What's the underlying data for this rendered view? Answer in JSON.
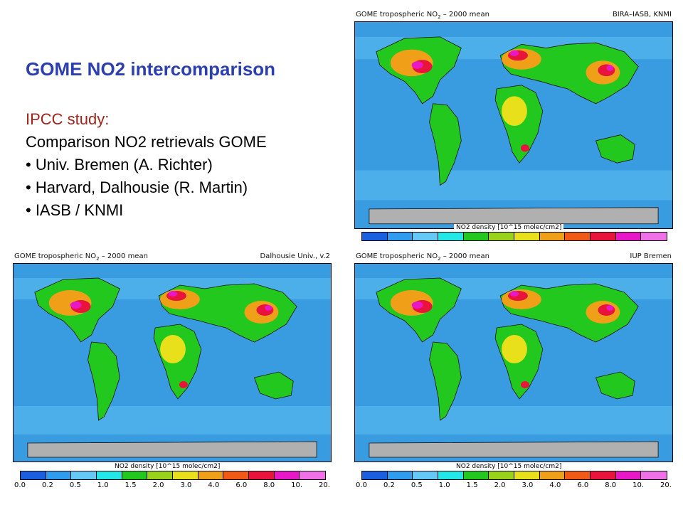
{
  "slide": {
    "title": "GOME NO2 intercomparison",
    "body": {
      "heading": "IPCC study:",
      "intro": "Comparison NO2 retrievals GOME",
      "bullets": [
        "• Univ. Bremen (A. Richter)",
        "• Harvard, Dalhousie (R. Martin)",
        "• IASB / KNMI"
      ]
    }
  },
  "maps": [
    {
      "id": "top-right",
      "title_prefix": "GOME tropospheric NO",
      "title_sub": "2",
      "title_suffix": " – 2000 mean",
      "source": "BIRA–IASB, KNMI"
    },
    {
      "id": "bottom-left",
      "title_prefix": "GOME tropospheric NO",
      "title_sub": "2",
      "title_suffix": " – 2000 mean",
      "source": "Dalhousie Univ., v.2"
    },
    {
      "id": "bottom-right",
      "title_prefix": "GOME tropospheric NO",
      "title_sub": "2",
      "title_suffix": " – 2000 mean",
      "source": "IUP Bremen"
    }
  ],
  "colorbar": {
    "label": "NO2 density [10^15 molec/cm2]",
    "ticks": [
      "0.0",
      "0.2",
      "0.5",
      "1.0",
      "1.5",
      "2.0",
      "3.0",
      "4.0",
      "6.0",
      "8.0",
      "10.",
      "20."
    ],
    "colors": [
      "#1a5fe0",
      "#2e9df0",
      "#66c8f4",
      "#22e8e8",
      "#22c81e",
      "#9ad21a",
      "#e8e01a",
      "#f0a018",
      "#f05a14",
      "#e8143c",
      "#e818c8",
      "#f070e8"
    ]
  },
  "colors": {
    "title": "#2b3fb0",
    "heading": "#a0241a",
    "ocean": "#3a9ce0",
    "land_low": "#22c81e",
    "hotspot": "#e8143c"
  }
}
